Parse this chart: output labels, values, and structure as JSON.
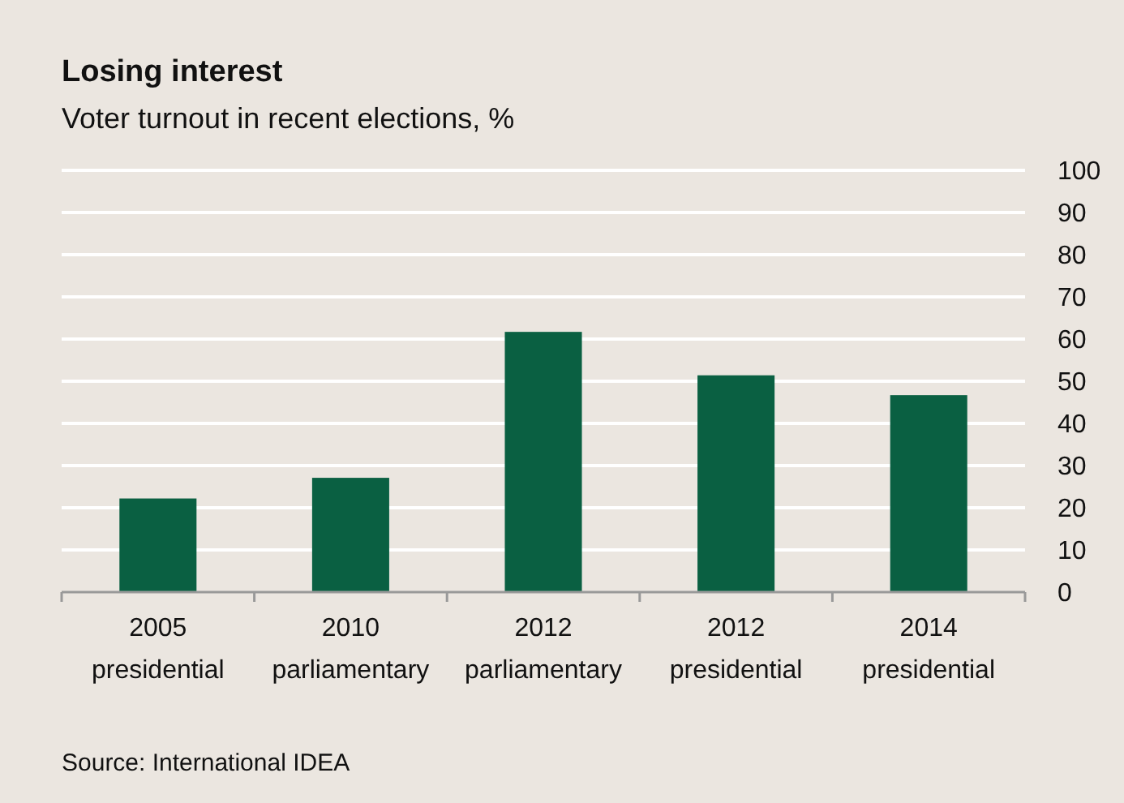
{
  "chart_data": {
    "type": "bar",
    "title": "Losing interest",
    "subtitle": "Voter turnout in recent elections, %",
    "categories": [
      "2005 presidential",
      "2010 parliamentary",
      "2012 parliamentary",
      "2012 presidential",
      "2014 presidential"
    ],
    "values": [
      22.2,
      27.1,
      61.7,
      51.4,
      46.7
    ],
    "color": "#0a6042",
    "ylim": [
      0,
      100
    ],
    "yticks": [
      0,
      10,
      20,
      30,
      40,
      50,
      60,
      70,
      80,
      90,
      100
    ],
    "grid": "y",
    "annotations": [
      "Source: International IDEA"
    ]
  }
}
